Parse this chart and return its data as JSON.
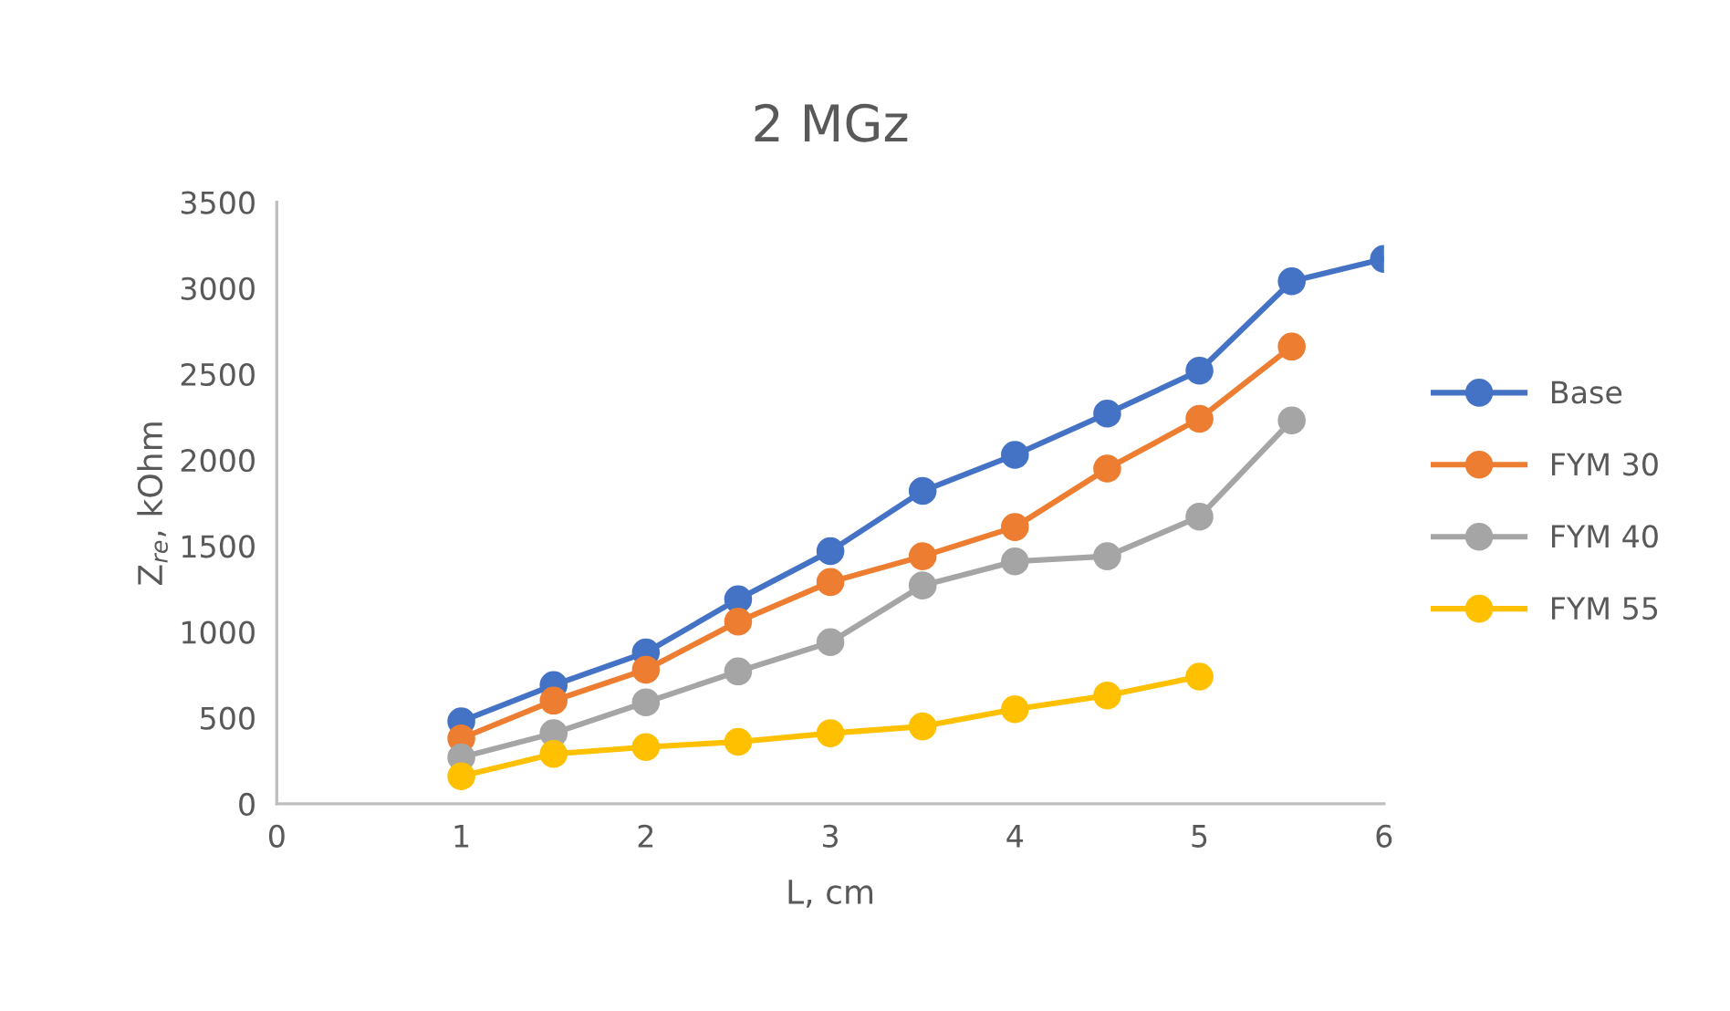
{
  "chart_data": {
    "type": "line",
    "title": "2 MGz",
    "xlabel": "L, cm",
    "ylabel": "Z$_{re}$, kOhm",
    "x": [
      1,
      1.5,
      2,
      2.5,
      3,
      3.5,
      4,
      4.5,
      5,
      5.5,
      6
    ],
    "series": [
      {
        "name": "Base",
        "color": "#4472c4",
        "values": [
          480,
          690,
          880,
          1190,
          1470,
          1820,
          2030,
          2270,
          2520,
          3040,
          3170
        ]
      },
      {
        "name": "FYM 30",
        "color": "#ed7d31",
        "values": [
          380,
          600,
          780,
          1060,
          1290,
          1440,
          1610,
          1950,
          2240,
          2660,
          null
        ]
      },
      {
        "name": "FYM 40",
        "color": "#a5a5a5",
        "values": [
          270,
          410,
          590,
          770,
          940,
          1270,
          1410,
          1440,
          1670,
          2230,
          null
        ]
      },
      {
        "name": "FYM 55",
        "color": "#ffc000",
        "values": [
          160,
          290,
          330,
          360,
          410,
          450,
          550,
          630,
          740,
          null,
          null
        ]
      }
    ],
    "xlim": [
      0,
      6
    ],
    "xticks": [
      0,
      1,
      2,
      3,
      4,
      5,
      6
    ],
    "ylim": [
      0,
      3500
    ],
    "yticks": [
      0,
      500,
      1000,
      1500,
      2000,
      2500,
      3000,
      3500
    ],
    "grid": false,
    "legend": "right",
    "marker": "circle",
    "line_style": "solid"
  }
}
